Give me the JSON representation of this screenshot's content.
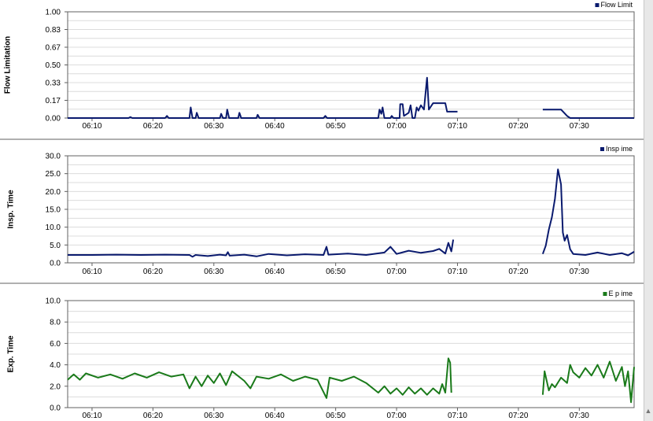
{
  "colors": {
    "background": "#ffffff",
    "plot_border": "#606060",
    "grid": "#dcdcdc",
    "separator": "#b0b0b0",
    "flow_series": "#0a1a6e",
    "insp_series": "#0a1a6e",
    "exp_series": "#1a7a1a"
  },
  "scrollbar": {
    "arrow_icon": "arrow-up-icon",
    "arrow_glyph": "▲"
  },
  "chart_data": [
    {
      "type": "line",
      "ylabel": "Flow Limitation",
      "xlabel": "",
      "legend": "Flow Limit",
      "legend_position": "top-right",
      "ylim": [
        0,
        1
      ],
      "xlim": [
        "06:06",
        "07:39"
      ],
      "grid": true,
      "yticks": [
        "0.00",
        "0.17",
        "0.33",
        "0.50",
        "0.67",
        "0.83",
        "1.00"
      ],
      "xticks": [
        "06:10",
        "06:20",
        "06:30",
        "06:40",
        "06:50",
        "07:00",
        "07:10",
        "07:20",
        "07:30"
      ],
      "series": [
        {
          "name": "Flow Limit",
          "segments": [
            [
              [
                "06:06",
                0
              ],
              [
                "06:16",
                0
              ],
              [
                "06:16.3",
                0.01
              ],
              [
                "06:16.6",
                0
              ],
              [
                "06:22",
                0
              ],
              [
                "06:22.3",
                0.02
              ],
              [
                "06:22.6",
                0
              ],
              [
                "06:26",
                0
              ],
              [
                "06:26.2",
                0.1
              ],
              [
                "06:26.5",
                0
              ],
              [
                "06:27",
                0
              ],
              [
                "06:27.2",
                0.05
              ],
              [
                "06:27.5",
                0
              ],
              [
                "06:31",
                0
              ],
              [
                "06:31.2",
                0.04
              ],
              [
                "06:31.5",
                0
              ],
              [
                "06:32",
                0
              ],
              [
                "06:32.2",
                0.08
              ],
              [
                "06:32.5",
                0
              ],
              [
                "06:34",
                0
              ],
              [
                "06:34.2",
                0.05
              ],
              [
                "06:34.5",
                0
              ],
              [
                "06:37",
                0
              ],
              [
                "06:37.2",
                0.03
              ],
              [
                "06:37.5",
                0
              ],
              [
                "06:48",
                0
              ],
              [
                "06:48.3",
                0.02
              ],
              [
                "06:48.6",
                0
              ],
              [
                "06:57",
                0
              ],
              [
                "06:57.2",
                0.08
              ],
              [
                "06:57.5",
                0.04
              ],
              [
                "06:57.7",
                0.1
              ],
              [
                "06:58",
                0
              ],
              [
                "06:59",
                0
              ],
              [
                "06:59.2",
                0.02
              ],
              [
                "06:59.5",
                0
              ],
              [
                "07:00.5",
                0
              ],
              [
                "07:00.6",
                0.13
              ],
              [
                "07:01",
                0.13
              ],
              [
                "07:01.2",
                0.02
              ],
              [
                "07:02",
                0.05
              ],
              [
                "07:02.3",
                0.12
              ],
              [
                "07:02.6",
                0
              ],
              [
                "07:03",
                0
              ],
              [
                "07:03.3",
                0.1
              ],
              [
                "07:03.6",
                0.07
              ],
              [
                "07:04",
                0.12
              ],
              [
                "07:04.5",
                0.08
              ],
              [
                "07:05",
                0.38
              ],
              [
                "07:05.3",
                0.08
              ],
              [
                "07:06",
                0.14
              ],
              [
                "07:08",
                0.14
              ],
              [
                "07:08.3",
                0.06
              ],
              [
                "07:10",
                0.06
              ]
            ],
            [
              [
                "07:24",
                0.08
              ],
              [
                "07:27",
                0.08
              ],
              [
                "07:28",
                0.02
              ],
              [
                "07:28.5",
                0
              ],
              [
                "07:39",
                0
              ]
            ]
          ]
        }
      ]
    },
    {
      "type": "line",
      "ylabel": "Insp. Time",
      "xlabel": "",
      "legend": "Insp  ime",
      "legend_position": "top-right",
      "ylim": [
        0,
        30
      ],
      "xlim": [
        "06:06",
        "07:39"
      ],
      "grid": true,
      "yticks": [
        "0.0",
        "5.0",
        "10.0",
        "15.0",
        "20.0",
        "25.0",
        "30.0"
      ],
      "xticks": [
        "06:10",
        "06:20",
        "06:30",
        "06:40",
        "06:50",
        "07:00",
        "07:10",
        "07:20",
        "07:30"
      ],
      "series": [
        {
          "name": "Insp  ime",
          "segments": [
            [
              [
                "06:06",
                2.2
              ],
              [
                "06:10",
                2.2
              ],
              [
                "06:14",
                2.3
              ],
              [
                "06:18",
                2.2
              ],
              [
                "06:22",
                2.3
              ],
              [
                "06:26",
                2.2
              ],
              [
                "06:26.5",
                1.7
              ],
              [
                "06:27",
                2.2
              ],
              [
                "06:29",
                1.9
              ],
              [
                "06:31",
                2.3
              ],
              [
                "06:32",
                2.1
              ],
              [
                "06:32.3",
                3.0
              ],
              [
                "06:32.6",
                2.0
              ],
              [
                "06:35",
                2.3
              ],
              [
                "06:37",
                1.8
              ],
              [
                "06:39",
                2.5
              ],
              [
                "06:42",
                2.1
              ],
              [
                "06:45",
                2.4
              ],
              [
                "06:48",
                2.2
              ],
              [
                "06:48.5",
                4.5
              ],
              [
                "06:48.8",
                2.3
              ],
              [
                "06:52",
                2.6
              ],
              [
                "06:55",
                2.2
              ],
              [
                "06:58",
                2.9
              ],
              [
                "06:59",
                4.5
              ],
              [
                "07:00",
                2.5
              ],
              [
                "07:02",
                3.4
              ],
              [
                "07:04",
                2.8
              ],
              [
                "07:06",
                3.3
              ],
              [
                "07:07",
                3.9
              ],
              [
                "07:08",
                2.6
              ],
              [
                "07:08.5",
                5.6
              ],
              [
                "07:09",
                3.2
              ],
              [
                "07:09.3",
                6.5
              ]
            ],
            [
              [
                "07:24",
                2.5
              ],
              [
                "07:24.5",
                4.8
              ],
              [
                "07:25",
                9.3
              ],
              [
                "07:25.5",
                12.8
              ],
              [
                "07:26",
                18
              ],
              [
                "07:26.5",
                26.2
              ],
              [
                "07:27",
                22
              ],
              [
                "07:27.3",
                8.5
              ],
              [
                "07:27.6",
                6.2
              ],
              [
                "07:28",
                7.8
              ],
              [
                "07:28.5",
                3.8
              ],
              [
                "07:29",
                2.5
              ],
              [
                "07:31",
                2.2
              ],
              [
                "07:33",
                2.9
              ],
              [
                "07:35",
                2.2
              ],
              [
                "07:37",
                2.7
              ],
              [
                "07:38",
                2.1
              ],
              [
                "07:39",
                3.1
              ]
            ]
          ]
        }
      ]
    },
    {
      "type": "line",
      "ylabel": "Exp. Time",
      "xlabel": "",
      "legend": "E  p   ime",
      "legend_position": "top-right",
      "ylim": [
        0,
        10
      ],
      "xlim": [
        "06:06",
        "07:39"
      ],
      "grid": true,
      "yticks": [
        "0.0",
        "2.0",
        "4.0",
        "6.0",
        "8.0",
        "10.0"
      ],
      "xticks": [
        "06:10",
        "06:20",
        "06:30",
        "06:40",
        "06:50",
        "07:00",
        "07:10",
        "07:20",
        "07:30"
      ],
      "series": [
        {
          "name": "E  p   ime",
          "segments": [
            [
              [
                "06:06",
                2.6
              ],
              [
                "06:07",
                3.1
              ],
              [
                "06:08",
                2.6
              ],
              [
                "06:09",
                3.2
              ],
              [
                "06:11",
                2.8
              ],
              [
                "06:13",
                3.1
              ],
              [
                "06:15",
                2.7
              ],
              [
                "06:17",
                3.2
              ],
              [
                "06:19",
                2.8
              ],
              [
                "06:21",
                3.3
              ],
              [
                "06:23",
                2.9
              ],
              [
                "06:25",
                3.1
              ],
              [
                "06:26",
                1.8
              ],
              [
                "06:27",
                2.9
              ],
              [
                "06:28",
                2.0
              ],
              [
                "06:29",
                3.0
              ],
              [
                "06:30",
                2.3
              ],
              [
                "06:31",
                3.2
              ],
              [
                "06:32",
                2.1
              ],
              [
                "06:33",
                3.4
              ],
              [
                "06:35",
                2.5
              ],
              [
                "06:36",
                1.8
              ],
              [
                "06:37",
                2.9
              ],
              [
                "06:39",
                2.7
              ],
              [
                "06:41",
                3.1
              ],
              [
                "06:43",
                2.5
              ],
              [
                "06:45",
                2.9
              ],
              [
                "06:47",
                2.6
              ],
              [
                "06:48.5",
                0.9
              ],
              [
                "06:49",
                2.8
              ],
              [
                "06:51",
                2.5
              ],
              [
                "06:53",
                2.9
              ],
              [
                "06:55",
                2.3
              ],
              [
                "06:57",
                1.4
              ],
              [
                "06:58",
                2.0
              ],
              [
                "06:59",
                1.3
              ],
              [
                "07:00",
                1.8
              ],
              [
                "07:01",
                1.2
              ],
              [
                "07:02",
                1.9
              ],
              [
                "07:03",
                1.3
              ],
              [
                "07:04",
                1.8
              ],
              [
                "07:05",
                1.2
              ],
              [
                "07:06",
                1.8
              ],
              [
                "07:07",
                1.3
              ],
              [
                "07:07.5",
                2.2
              ],
              [
                "07:08",
                1.4
              ],
              [
                "07:08.5",
                4.6
              ],
              [
                "07:08.8",
                4.2
              ],
              [
                "07:09",
                1.4
              ]
            ],
            [
              [
                "07:24",
                1.2
              ],
              [
                "07:24.3",
                3.4
              ],
              [
                "07:25",
                1.6
              ],
              [
                "07:25.5",
                2.2
              ],
              [
                "07:26",
                1.9
              ],
              [
                "07:27",
                2.8
              ],
              [
                "07:28",
                2.3
              ],
              [
                "07:28.5",
                4.0
              ],
              [
                "07:29",
                3.3
              ],
              [
                "07:30",
                2.8
              ],
              [
                "07:31",
                3.7
              ],
              [
                "07:32",
                3.0
              ],
              [
                "07:33",
                4.0
              ],
              [
                "07:34",
                2.8
              ],
              [
                "07:35",
                4.3
              ],
              [
                "07:36",
                2.5
              ],
              [
                "07:37",
                3.8
              ],
              [
                "07:37.5",
                2.0
              ],
              [
                "07:38",
                3.4
              ],
              [
                "07:38.5",
                0.5
              ],
              [
                "07:39",
                3.8
              ]
            ]
          ]
        }
      ]
    }
  ]
}
